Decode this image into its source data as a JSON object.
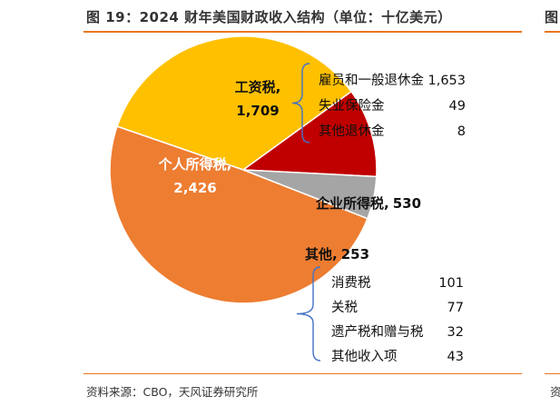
{
  "title": "图 19：2024 财年美国财政收入结构（单位：十亿美元）",
  "source": "资料来源：CBO，天风证券研究所",
  "edge_fragments": {
    "title_mark": "图",
    "source_mark": "资"
  },
  "colors": {
    "individual_income_tax": "#ed7d31",
    "payroll_tax": "#ffc000",
    "corporate_income_tax": "#c00000",
    "other": "#a5a5a5",
    "bracket": "#4472c4",
    "accent_rule": "#e87722"
  },
  "chart_data": {
    "type": "pie",
    "title": "2024 财年美国财政收入结构（单位：十亿美元）",
    "slices": [
      {
        "key": "payroll_tax",
        "label": "工资税,",
        "value_label": "1,709",
        "value": 1709,
        "label_style": "black-bold"
      },
      {
        "key": "corporate_income_tax",
        "label": "企业所得税,",
        "value_label": "530",
        "value": 530,
        "label_style": "black-bold"
      },
      {
        "key": "other",
        "label": "其他,",
        "value_label": "253",
        "value": 253,
        "label_style": "black-bold"
      },
      {
        "key": "individual_income_tax",
        "label": "个人所得税,",
        "value_label": "2,426",
        "value": 2426,
        "label_style": "white-bold"
      }
    ],
    "breakdowns": [
      {
        "parent": "payroll_tax",
        "items": [
          {
            "label": "雇员和一般退休金",
            "value_label": "1,653",
            "value": 1653
          },
          {
            "label": "失业保险金",
            "value_label": "49",
            "value": 49
          },
          {
            "label": "其他退休金",
            "value_label": "8",
            "value": 8
          }
        ]
      },
      {
        "parent": "other",
        "items": [
          {
            "label": "消费税",
            "value_label": "101",
            "value": 101
          },
          {
            "label": "关税",
            "value_label": "77",
            "value": 77
          },
          {
            "label": "遗产税和赠与税",
            "value_label": "32",
            "value": 32
          },
          {
            "label": "其他收入项",
            "value_label": "43",
            "value": 43
          }
        ]
      }
    ]
  }
}
